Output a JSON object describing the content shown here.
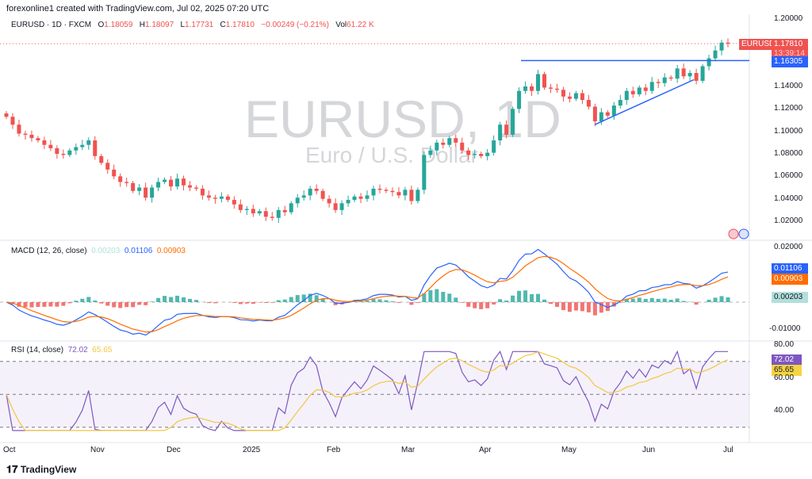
{
  "credit": "forexonline1 created with TradingView.com, Jul 02, 2025 07:20 UTC",
  "legend": {
    "symbol": "EURUSD · 1D · FXCM",
    "o_label": "O",
    "o": "1.18059",
    "h_label": "H",
    "h": "1.18097",
    "l_label": "L",
    "l": "1.17731",
    "c_label": "C",
    "c": "1.17810",
    "change": "−0.00249 (−0.21%)",
    "vol_label": "Vol",
    "vol": "61.22 K"
  },
  "watermark": {
    "title": "EURUSD, 1D",
    "subtitle": "Euro / U.S. Dollar"
  },
  "tags": {
    "symbol": "EURUSD",
    "price": "1.17810",
    "countdown": "13:39:14",
    "level": "1.16305"
  },
  "macd_legend": {
    "label": "MACD (12, 26, close)",
    "hist": "0.00203",
    "macd": "0.01106",
    "signal": "0.00903"
  },
  "rsi_legend": {
    "label": "RSI (14, close)",
    "rsi": "72.02",
    "ma": "65.65"
  },
  "footer": {
    "brand": "TradingView"
  },
  "colors": {
    "up": "#26a69a",
    "down": "#ef5350",
    "macd": "#2962ff",
    "signal": "#ff6d00",
    "rsi": "#7e57c2",
    "rsi_ma": "#f5c542",
    "trendline": "#2962ff"
  },
  "chart_data": {
    "type": "candlestick",
    "price_axis": [
      "1.20000",
      "1.14000",
      "1.12000",
      "1.10000",
      "1.08000",
      "1.06000",
      "1.04000",
      "1.02000"
    ],
    "price_axis_values": [
      1.2,
      1.14,
      1.12,
      1.1,
      1.08,
      1.06,
      1.04,
      1.02
    ],
    "ylim": [
      1.02,
      1.2
    ],
    "x_ticks": [
      "Oct",
      "Nov",
      "Dec",
      "2025",
      "Feb",
      "Mar",
      "Apr",
      "May",
      "Jun",
      "Jul"
    ],
    "horizontal_level": 1.16305,
    "trendline": {
      "from": {
        "date": "May 12",
        "price": 1.106
      },
      "to": {
        "date": "Jun 23",
        "price": 1.146
      }
    },
    "close": [
      1.113,
      1.106,
      1.098,
      1.097,
      1.094,
      1.092,
      1.088,
      1.085,
      1.08,
      1.079,
      1.083,
      1.086,
      1.088,
      1.092,
      1.078,
      1.072,
      1.066,
      1.06,
      1.055,
      1.054,
      1.047,
      1.05,
      1.041,
      1.05,
      1.055,
      1.057,
      1.051,
      1.058,
      1.052,
      1.05,
      1.049,
      1.043,
      1.041,
      1.04,
      1.042,
      1.039,
      1.035,
      1.03,
      1.031,
      1.027,
      1.029,
      1.024,
      1.023,
      1.03,
      1.028,
      1.036,
      1.041,
      1.043,
      1.049,
      1.047,
      1.04,
      1.036,
      1.03,
      1.036,
      1.039,
      1.042,
      1.04,
      1.043,
      1.049,
      1.048,
      1.047,
      1.046,
      1.043,
      1.048,
      1.038,
      1.048,
      1.079,
      1.083,
      1.09,
      1.088,
      1.094,
      1.09,
      1.083,
      1.079,
      1.08,
      1.078,
      1.081,
      1.092,
      1.106,
      1.097,
      1.12,
      1.136,
      1.14,
      1.136,
      1.151,
      1.139,
      1.138,
      1.137,
      1.131,
      1.129,
      1.134,
      1.128,
      1.122,
      1.109,
      1.117,
      1.114,
      1.123,
      1.128,
      1.136,
      1.133,
      1.139,
      1.136,
      1.144,
      1.143,
      1.148,
      1.147,
      1.156,
      1.149,
      1.152,
      1.145,
      1.158,
      1.165,
      1.172,
      1.179,
      1.178
    ],
    "macd_axis": [
      "0.02000",
      "-0.01000"
    ],
    "rsi_axis": [
      "80.00",
      "60.00",
      "40.00"
    ],
    "rsi_levels": [
      70,
      50,
      30
    ]
  }
}
